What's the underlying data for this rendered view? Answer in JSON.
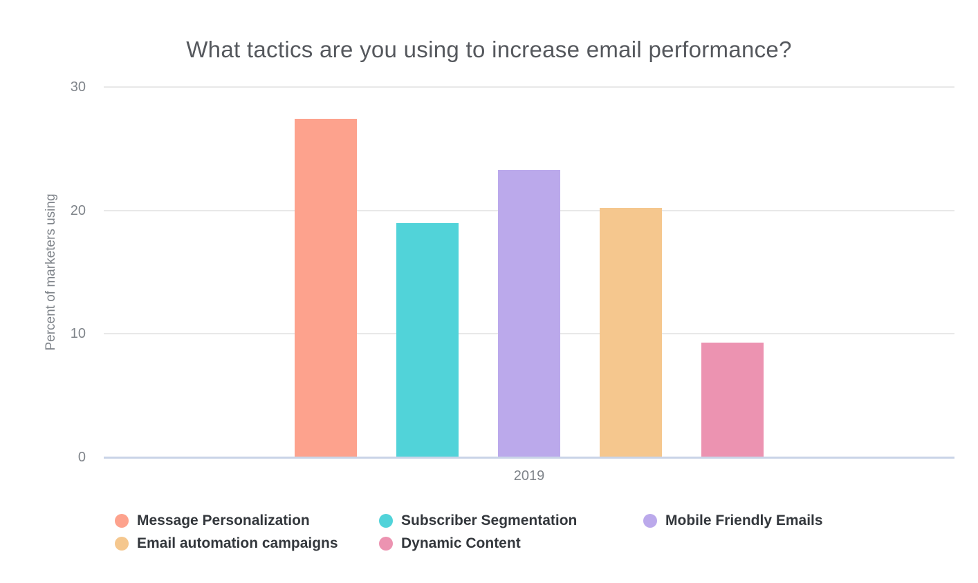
{
  "chart_data": {
    "type": "bar",
    "title": "What tactics are you using to increase email performance?",
    "ylabel": "Percent of marketers using",
    "xlabel": "",
    "x_categories": [
      "2019"
    ],
    "ylim": [
      0,
      30
    ],
    "yticks": [
      0,
      10,
      20,
      30
    ],
    "grid": true,
    "legend_position": "bottom",
    "series": [
      {
        "name": "Message Personalization",
        "values": [
          27.4
        ],
        "color": "#FDA28D"
      },
      {
        "name": "Subscriber Segmentation",
        "values": [
          19.0
        ],
        "color": "#51D3D9"
      },
      {
        "name": "Mobile Friendly Emails",
        "values": [
          23.3
        ],
        "color": "#BBA9EB"
      },
      {
        "name": "Email automation campaigns",
        "values": [
          20.2
        ],
        "color": "#F5C78E"
      },
      {
        "name": "Dynamic Content",
        "values": [
          9.3
        ],
        "color": "#EC93B1"
      }
    ],
    "colors": {
      "title_text": "#55585D",
      "axis_text": "#7F848A",
      "legend_text": "#33373C",
      "gridline": "#E8E8E8",
      "axis_line": "#C9D4E7",
      "background": "#FFFFFF"
    }
  }
}
